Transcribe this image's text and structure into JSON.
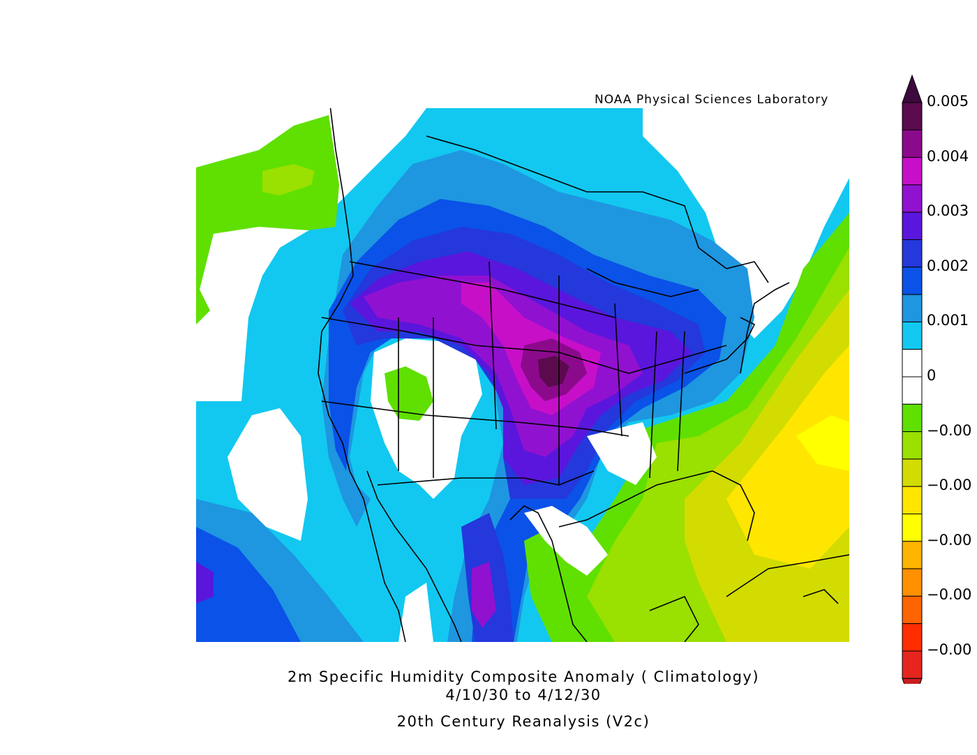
{
  "credit": "NOAA Physical Sciences Laboratory",
  "title_line1": "2m Specific Humidity  Composite Anomaly ( Climatology)",
  "title_line2": "4/10/30  to 4/12/30",
  "dataset": "20th Century Reanalysis (V2c)",
  "colorbar": {
    "labels": [
      "0.005",
      "0.004",
      "0.003",
      "0.002",
      "0.001",
      "0",
      "−0.00",
      "−0.00",
      "−0.00",
      "−0.00",
      "−0.00"
    ],
    "colors": [
      "#5b0a4e",
      "#8b0a8c",
      "#c80fc8",
      "#9111d0",
      "#5a16dc",
      "#2438dc",
      "#0a52e8",
      "#1e96e0",
      "#12c8f0",
      "#ffffff",
      "#ffffff",
      "#5fe000",
      "#9ae000",
      "#d2dc00",
      "#ffe600",
      "#ffff00",
      "#ffb400",
      "#ff9000",
      "#ff6400",
      "#ff2d00",
      "#e6261e"
    ],
    "top_arrow_color": "#3c0a3c",
    "bottom_arrow_color": "#c81e1e"
  },
  "palette": {
    "land_outline": "#000000",
    "background": "#ffffff"
  }
}
